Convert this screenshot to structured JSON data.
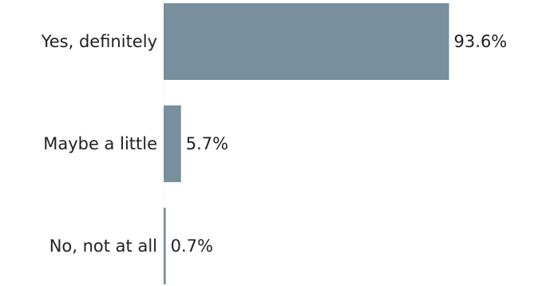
{
  "chart_data": {
    "type": "bar",
    "orientation": "horizontal",
    "categories": [
      "Yes, definitely",
      "Maybe a little",
      "No, not at all"
    ],
    "values": [
      93.6,
      5.7,
      0.7
    ],
    "value_labels": [
      "93.6%",
      "5.7%",
      "0.7%"
    ],
    "title": "",
    "xlabel": "",
    "ylabel": "",
    "xlim": [
      0,
      100
    ],
    "grid": false,
    "legend": "none",
    "bar_color": "#788f9e"
  }
}
